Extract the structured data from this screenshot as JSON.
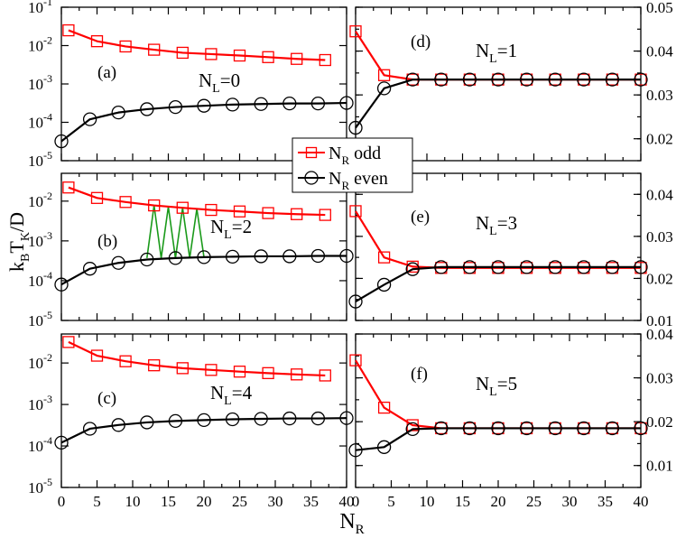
{
  "chart_data": {
    "type": "line",
    "x_label_main": "N",
    "x_label_sub": "R",
    "y_label": "k",
    "y_label_sub_b": "B",
    "y_label_mid": "T",
    "y_label_sub_k": "K",
    "y_label_tail": "/D",
    "x_ticks": [
      "0",
      "5",
      "10",
      "15",
      "20",
      "25",
      "30",
      "35",
      "40"
    ],
    "xlim": [
      0,
      40
    ],
    "legend": {
      "entries": [
        {
          "label_main": "N",
          "label_sub": "R",
          "label_tail": " odd",
          "color": "#ff0000",
          "marker": "square"
        },
        {
          "label_main": "N",
          "label_sub": "R",
          "label_tail": " even",
          "color": "#000000",
          "marker": "circle"
        }
      ]
    },
    "panels": [
      {
        "id": "a",
        "tag": "(a)",
        "nl_main": "N",
        "nl_sub": "L",
        "nl_tail": "=0",
        "scale": "log",
        "ylim": [
          1e-05,
          0.1
        ],
        "y_ticks": [
          {
            "v": 1e-05,
            "b": "10",
            "e": "-5"
          },
          {
            "v": 0.0001,
            "b": "10",
            "e": "-4"
          },
          {
            "v": 0.001,
            "b": "10",
            "e": "-3"
          },
          {
            "v": 0.01,
            "b": "10",
            "e": "-2"
          },
          {
            "v": 0.1,
            "b": "10",
            "e": "-1"
          }
        ],
        "odd": {
          "x": [
            1,
            5,
            9,
            13,
            17,
            21,
            25,
            29,
            33,
            37
          ],
          "y": [
            0.025,
            0.013,
            0.0095,
            0.0078,
            0.0065,
            0.006,
            0.0055,
            0.005,
            0.0045,
            0.0042
          ]
        },
        "even": {
          "x": [
            0,
            4,
            8,
            12,
            16,
            20,
            24,
            28,
            32,
            36,
            40
          ],
          "y": [
            3.2e-05,
            0.00012,
            0.00018,
            0.00022,
            0.00025,
            0.00027,
            0.00029,
            0.0003,
            0.00031,
            0.00031,
            0.00032
          ]
        }
      },
      {
        "id": "b",
        "tag": "(b)",
        "nl_main": "N",
        "nl_sub": "L",
        "nl_tail": "=2",
        "scale": "log",
        "ylim": [
          1e-05,
          0.05
        ],
        "y_ticks": [
          {
            "v": 1e-05,
            "b": "10",
            "e": "-5"
          },
          {
            "v": 0.0001,
            "b": "10",
            "e": "-4"
          },
          {
            "v": 0.001,
            "b": "10",
            "e": "-3"
          },
          {
            "v": 0.01,
            "b": "10",
            "e": "-2"
          }
        ],
        "odd": {
          "x": [
            1,
            5,
            9,
            13,
            17,
            21,
            25,
            29,
            33,
            37
          ],
          "y": [
            0.022,
            0.012,
            0.0095,
            0.0078,
            0.0068,
            0.006,
            0.0055,
            0.005,
            0.0047,
            0.0045
          ]
        },
        "even": {
          "x": [
            0,
            4,
            8,
            12,
            16,
            20,
            24,
            28,
            32,
            36,
            40
          ],
          "y": [
            8e-05,
            0.0002,
            0.00028,
            0.00034,
            0.00037,
            0.00039,
            0.0004,
            0.00041,
            0.00041,
            0.00042,
            0.00042
          ]
        },
        "zigzag": {
          "color": "#1a9a1a",
          "x": [
            12,
            13,
            14,
            15,
            16,
            17,
            18,
            19,
            20
          ],
          "y": [
            0.00037,
            0.0078,
            0.00037,
            0.0072,
            0.00037,
            0.0068,
            0.00037,
            0.0064,
            0.00039
          ]
        }
      },
      {
        "id": "c",
        "tag": "(c)",
        "nl_main": "N",
        "nl_sub": "L",
        "nl_tail": "=4",
        "scale": "log",
        "ylim": [
          1e-05,
          0.05
        ],
        "y_ticks": [
          {
            "v": 1e-05,
            "b": "10",
            "e": "-5"
          },
          {
            "v": 0.0001,
            "b": "10",
            "e": "-4"
          },
          {
            "v": 0.001,
            "b": "10",
            "e": "-3"
          },
          {
            "v": 0.01,
            "b": "10",
            "e": "-2"
          }
        ],
        "odd": {
          "x": [
            1,
            5,
            9,
            13,
            17,
            21,
            25,
            29,
            33,
            37
          ],
          "y": [
            0.032,
            0.015,
            0.011,
            0.0088,
            0.0075,
            0.0068,
            0.0062,
            0.0057,
            0.0053,
            0.005
          ]
        },
        "even": {
          "x": [
            0,
            4,
            8,
            12,
            16,
            20,
            24,
            28,
            32,
            36,
            40
          ],
          "y": [
            0.00012,
            0.00026,
            0.00032,
            0.00037,
            0.0004,
            0.00042,
            0.00044,
            0.00045,
            0.00046,
            0.00046,
            0.00047
          ]
        }
      },
      {
        "id": "d",
        "tag": "(d)",
        "nl_main": "N",
        "nl_sub": "L",
        "nl_tail": "=1",
        "scale": "linear",
        "ylim": [
          0.015,
          0.05
        ],
        "y_ticks": [
          {
            "v": 0.02,
            "t": "0.02"
          },
          {
            "v": 0.03,
            "t": "0.03"
          },
          {
            "v": 0.04,
            "t": "0.04"
          },
          {
            "v": 0.05,
            "t": "0.05"
          }
        ],
        "odd": {
          "x": [
            0,
            4,
            8,
            12,
            16,
            20,
            24,
            28,
            32,
            36,
            40
          ],
          "y": [
            0.0445,
            0.0345,
            0.0335,
            0.0335,
            0.0335,
            0.0335,
            0.0335,
            0.0335,
            0.0335,
            0.0335,
            0.0335
          ]
        },
        "even": {
          "x": [
            0,
            4,
            8,
            12,
            16,
            20,
            24,
            28,
            32,
            36,
            40
          ],
          "y": [
            0.0225,
            0.0315,
            0.0335,
            0.0335,
            0.0335,
            0.0335,
            0.0335,
            0.0335,
            0.0335,
            0.0335,
            0.0335
          ]
        }
      },
      {
        "id": "e",
        "tag": "(e)",
        "nl_main": "N",
        "nl_sub": "L",
        "nl_tail": "=3",
        "scale": "linear",
        "ylim": [
          0.01,
          0.045
        ],
        "y_ticks": [
          {
            "v": 0.01,
            "t": "0.01"
          },
          {
            "v": 0.02,
            "t": "0.02"
          },
          {
            "v": 0.03,
            "t": "0.03"
          },
          {
            "v": 0.04,
            "t": "0.04"
          }
        ],
        "odd": {
          "x": [
            0,
            4,
            8,
            12,
            16,
            20,
            24,
            28,
            32,
            36,
            40
          ],
          "y": [
            0.036,
            0.025,
            0.0228,
            0.0225,
            0.0225,
            0.0225,
            0.0225,
            0.0225,
            0.0225,
            0.0225,
            0.0225
          ]
        },
        "even": {
          "x": [
            0,
            4,
            8,
            12,
            16,
            20,
            24,
            28,
            32,
            36,
            40
          ],
          "y": [
            0.0145,
            0.0185,
            0.0222,
            0.0227,
            0.0227,
            0.0227,
            0.0227,
            0.0227,
            0.0227,
            0.0227,
            0.0227
          ]
        }
      },
      {
        "id": "f",
        "tag": "(f)",
        "nl_main": "N",
        "nl_sub": "L",
        "nl_tail": "=5",
        "scale": "linear",
        "ylim": [
          0.005,
          0.04
        ],
        "y_ticks": [
          {
            "v": 0.01,
            "t": "0.01"
          },
          {
            "v": 0.02,
            "t": "0.02"
          },
          {
            "v": 0.03,
            "t": "0.03"
          },
          {
            "v": 0.04,
            "t": "0.04"
          }
        ],
        "odd": {
          "x": [
            0,
            4,
            8,
            12,
            16,
            20,
            24,
            28,
            32,
            36,
            40
          ],
          "y": [
            0.034,
            0.0232,
            0.0192,
            0.0185,
            0.0185,
            0.0185,
            0.0185,
            0.0185,
            0.0185,
            0.0185,
            0.0185
          ]
        },
        "even": {
          "x": [
            0,
            4,
            8,
            12,
            16,
            20,
            24,
            28,
            32,
            36,
            40
          ],
          "y": [
            0.0135,
            0.0142,
            0.0183,
            0.0185,
            0.0185,
            0.0185,
            0.0185,
            0.0185,
            0.0185,
            0.0185,
            0.0185
          ]
        }
      }
    ]
  }
}
